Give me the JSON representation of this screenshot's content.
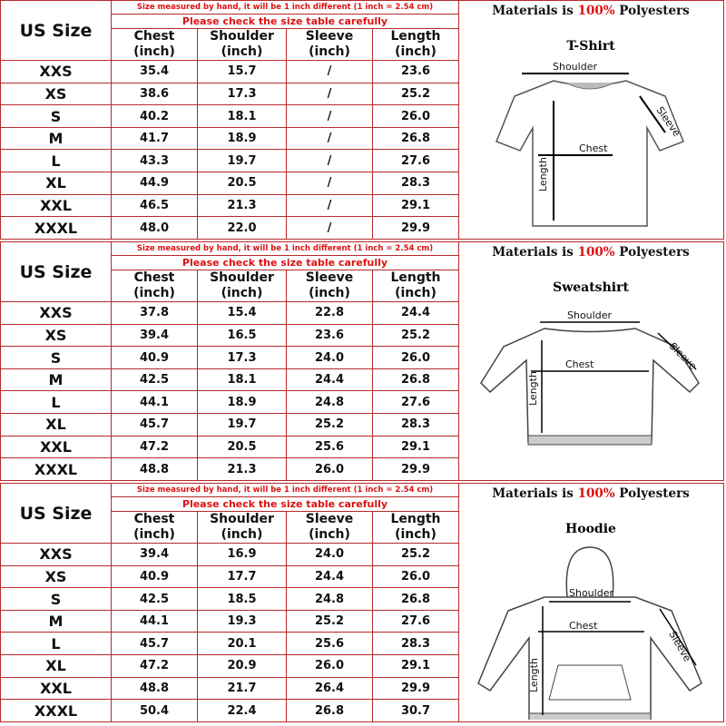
{
  "header": {
    "us_size": "US Size",
    "note_measure": "Size measured by hand, it will be 1 inch different (1 inch = 2.54 cm)",
    "note_check": "Please check the size table carefully",
    "columns": [
      "Chest",
      "Shoulder",
      "Sleeve",
      "Length"
    ],
    "unit": "(inch)"
  },
  "materials": {
    "prefix": "Materials is ",
    "percent": "100%",
    "suffix": " Polyesters"
  },
  "labels": {
    "shoulder": "Shoulder",
    "sleeve": "Sleeve",
    "chest": "Chest",
    "length": "Length"
  },
  "colors": {
    "border": "#b52a2a",
    "accent": "#dd1111"
  },
  "sections": [
    {
      "garment": "T-Shirt",
      "rows": [
        [
          "XXS",
          "35.4",
          "15.7",
          "/",
          "23.6"
        ],
        [
          "XS",
          "38.6",
          "17.3",
          "/",
          "25.2"
        ],
        [
          "S",
          "40.2",
          "18.1",
          "/",
          "26.0"
        ],
        [
          "M",
          "41.7",
          "18.9",
          "/",
          "26.8"
        ],
        [
          "L",
          "43.3",
          "19.7",
          "/",
          "27.6"
        ],
        [
          "XL",
          "44.9",
          "20.5",
          "/",
          "28.3"
        ],
        [
          "XXL",
          "46.5",
          "21.3",
          "/",
          "29.1"
        ],
        [
          "XXXL",
          "48.0",
          "22.0",
          "/",
          "29.9"
        ]
      ]
    },
    {
      "garment": "Sweatshirt",
      "rows": [
        [
          "XXS",
          "37.8",
          "15.4",
          "22.8",
          "24.4"
        ],
        [
          "XS",
          "39.4",
          "16.5",
          "23.6",
          "25.2"
        ],
        [
          "S",
          "40.9",
          "17.3",
          "24.0",
          "26.0"
        ],
        [
          "M",
          "42.5",
          "18.1",
          "24.4",
          "26.8"
        ],
        [
          "L",
          "44.1",
          "18.9",
          "24.8",
          "27.6"
        ],
        [
          "XL",
          "45.7",
          "19.7",
          "25.2",
          "28.3"
        ],
        [
          "XXL",
          "47.2",
          "20.5",
          "25.6",
          "29.1"
        ],
        [
          "XXXL",
          "48.8",
          "21.3",
          "26.0",
          "29.9"
        ]
      ]
    },
    {
      "garment": "Hoodie",
      "rows": [
        [
          "XXS",
          "39.4",
          "16.9",
          "24.0",
          "25.2"
        ],
        [
          "XS",
          "40.9",
          "17.7",
          "24.4",
          "26.0"
        ],
        [
          "S",
          "42.5",
          "18.5",
          "24.8",
          "26.8"
        ],
        [
          "M",
          "44.1",
          "19.3",
          "25.2",
          "27.6"
        ],
        [
          "L",
          "45.7",
          "20.1",
          "25.6",
          "28.3"
        ],
        [
          "XL",
          "47.2",
          "20.9",
          "26.0",
          "29.1"
        ],
        [
          "XXL",
          "48.8",
          "21.7",
          "26.4",
          "29.9"
        ],
        [
          "XXXL",
          "50.4",
          "22.4",
          "26.8",
          "30.7"
        ]
      ]
    }
  ]
}
